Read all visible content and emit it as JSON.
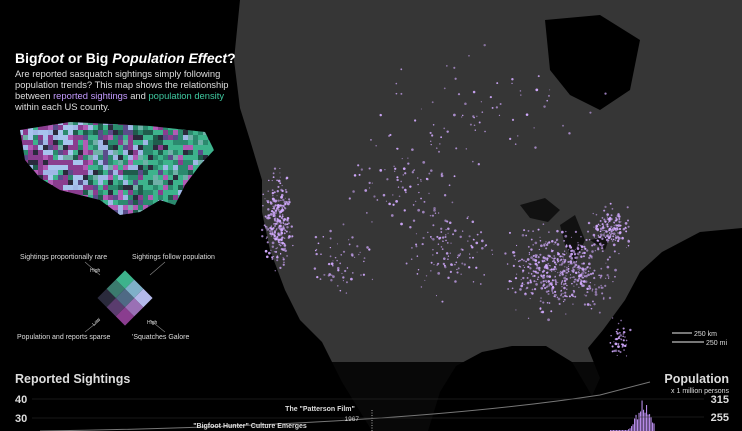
{
  "title": {
    "parts": [
      "Big",
      "foot",
      " or Big ",
      "Population Effect",
      "?"
    ]
  },
  "description": {
    "parts": [
      "Are reported sasquatch sightings simply following population trends? This map shows the relationship between ",
      "reported sightings",
      " and ",
      "population density",
      " within each US county."
    ]
  },
  "legend": {
    "top_left": "Sightings proportionally rare",
    "top_right": "Sightings follow population",
    "axis_high_top": "High",
    "axis_low": "Low",
    "axis_high_right": "High",
    "bottom_left": "Population and reports sparse",
    "bottom_right": "'Squatches Galore"
  },
  "scale": {
    "km": "250 km",
    "mi": "250 mi"
  },
  "sightings_chart": {
    "title": "Reported Sightings",
    "yticks": [
      40,
      30
    ],
    "annotations": [
      {
        "label": "The \"Patterson Film\"",
        "year": "1967"
      },
      {
        "label": "\"Bigfoot Hunter\" Culture Emerges"
      }
    ]
  },
  "population_chart": {
    "title": "Population",
    "subtitle": "x 1 million persons",
    "yticks": [
      315,
      255
    ]
  }
}
